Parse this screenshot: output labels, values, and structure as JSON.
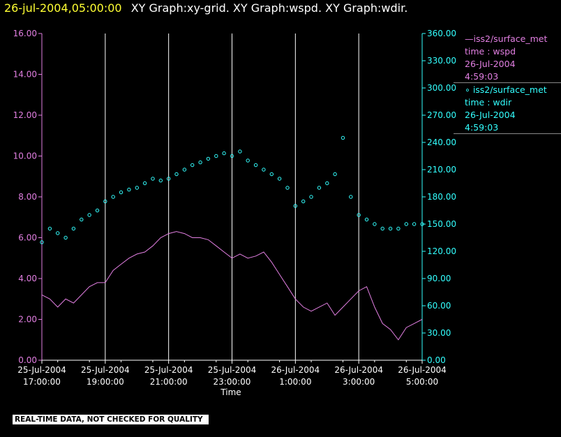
{
  "header": {
    "timestamp": "26-jul-2004,05:00:00",
    "graphs": "XY Graph:xy-grid.  XY Graph:wspd.  XY Graph:wdir."
  },
  "chart_data": {
    "type": "line",
    "xlabel": "Time",
    "x_range": [
      "2004-07-25T17:00",
      "2004-07-26T05:00"
    ],
    "x_ticks": [
      {
        "date": "25-Jul-2004",
        "time": "17:00:00"
      },
      {
        "date": "25-Jul-2004",
        "time": "19:00:00"
      },
      {
        "date": "25-Jul-2004",
        "time": "21:00:00"
      },
      {
        "date": "25-Jul-2004",
        "time": "23:00:00"
      },
      {
        "date": "26-Jul-2004",
        "time": "1:00:00"
      },
      {
        "date": "26-Jul-2004",
        "time": "3:00:00"
      },
      {
        "date": "26-Jul-2004",
        "time": "5:00:00"
      }
    ],
    "vertical_grid": true,
    "y_left": {
      "ylim": [
        0,
        16
      ],
      "ticks": [
        "0.00",
        "2.00",
        "4.00",
        "6.00",
        "8.00",
        "10.00",
        "12.00",
        "14.00",
        "16.00"
      ],
      "color": "#e27fe2"
    },
    "y_right": {
      "ylim": [
        0,
        360
      ],
      "ticks": [
        "0.00",
        "30.00",
        "60.00",
        "90.00",
        "120.00",
        "150.00",
        "180.00",
        "210.00",
        "240.00",
        "270.00",
        "300.00",
        "330.00",
        "360.00"
      ],
      "color": "#33ffff"
    },
    "series": [
      {
        "name": "iss2/surface_met",
        "variable": "wspd",
        "style": "line",
        "axis": "left",
        "color": "#e27fe2",
        "points": [
          [
            "2004-07-25T17:00",
            3.2
          ],
          [
            "2004-07-25T17:15",
            3.0
          ],
          [
            "2004-07-25T17:30",
            2.6
          ],
          [
            "2004-07-25T17:45",
            3.0
          ],
          [
            "2004-07-25T18:00",
            2.8
          ],
          [
            "2004-07-25T18:15",
            3.2
          ],
          [
            "2004-07-25T18:30",
            3.6
          ],
          [
            "2004-07-25T18:45",
            3.8
          ],
          [
            "2004-07-25T19:00",
            3.8
          ],
          [
            "2004-07-25T19:15",
            4.4
          ],
          [
            "2004-07-25T19:30",
            4.7
          ],
          [
            "2004-07-25T19:45",
            5.0
          ],
          [
            "2004-07-25T20:00",
            5.2
          ],
          [
            "2004-07-25T20:15",
            5.3
          ],
          [
            "2004-07-25T20:30",
            5.6
          ],
          [
            "2004-07-25T20:45",
            6.0
          ],
          [
            "2004-07-25T21:00",
            6.2
          ],
          [
            "2004-07-25T21:15",
            6.3
          ],
          [
            "2004-07-25T21:30",
            6.2
          ],
          [
            "2004-07-25T21:45",
            6.0
          ],
          [
            "2004-07-25T22:00",
            6.0
          ],
          [
            "2004-07-25T22:15",
            5.9
          ],
          [
            "2004-07-25T22:30",
            5.6
          ],
          [
            "2004-07-25T22:45",
            5.3
          ],
          [
            "2004-07-25T23:00",
            5.0
          ],
          [
            "2004-07-25T23:15",
            5.2
          ],
          [
            "2004-07-25T23:30",
            5.0
          ],
          [
            "2004-07-25T23:45",
            5.1
          ],
          [
            "2004-07-26T00:00",
            5.3
          ],
          [
            "2004-07-26T00:15",
            4.8
          ],
          [
            "2004-07-26T00:30",
            4.2
          ],
          [
            "2004-07-26T00:45",
            3.6
          ],
          [
            "2004-07-26T01:00",
            3.0
          ],
          [
            "2004-07-26T01:15",
            2.6
          ],
          [
            "2004-07-26T01:30",
            2.4
          ],
          [
            "2004-07-26T01:45",
            2.6
          ],
          [
            "2004-07-26T02:00",
            2.8
          ],
          [
            "2004-07-26T02:15",
            2.2
          ],
          [
            "2004-07-26T02:30",
            2.6
          ],
          [
            "2004-07-26T02:45",
            3.0
          ],
          [
            "2004-07-26T03:00",
            3.4
          ],
          [
            "2004-07-26T03:15",
            3.6
          ],
          [
            "2004-07-26T03:30",
            2.6
          ],
          [
            "2004-07-26T03:45",
            1.8
          ],
          [
            "2004-07-26T04:00",
            1.5
          ],
          [
            "2004-07-26T04:15",
            1.0
          ],
          [
            "2004-07-26T04:30",
            1.6
          ],
          [
            "2004-07-26T04:45",
            1.8
          ],
          [
            "2004-07-26T05:00",
            2.0
          ]
        ],
        "legend_lines": [
          "iss2/surface_met",
          "time : wspd",
          "26-Jul-2004",
          "4:59:03"
        ]
      },
      {
        "name": "iss2/surface_met",
        "variable": "wdir",
        "style": "scatter",
        "axis": "right",
        "color": "#33ffff",
        "points": [
          [
            "2004-07-25T17:00",
            130
          ],
          [
            "2004-07-25T17:15",
            145
          ],
          [
            "2004-07-25T17:30",
            140
          ],
          [
            "2004-07-25T17:45",
            135
          ],
          [
            "2004-07-25T18:00",
            145
          ],
          [
            "2004-07-25T18:15",
            155
          ],
          [
            "2004-07-25T18:30",
            160
          ],
          [
            "2004-07-25T18:45",
            165
          ],
          [
            "2004-07-25T19:00",
            175
          ],
          [
            "2004-07-25T19:15",
            180
          ],
          [
            "2004-07-25T19:30",
            185
          ],
          [
            "2004-07-25T19:45",
            188
          ],
          [
            "2004-07-25T20:00",
            190
          ],
          [
            "2004-07-25T20:15",
            195
          ],
          [
            "2004-07-25T20:30",
            200
          ],
          [
            "2004-07-25T20:45",
            198
          ],
          [
            "2004-07-25T21:00",
            200
          ],
          [
            "2004-07-25T21:15",
            205
          ],
          [
            "2004-07-25T21:30",
            210
          ],
          [
            "2004-07-25T21:45",
            215
          ],
          [
            "2004-07-25T22:00",
            218
          ],
          [
            "2004-07-25T22:15",
            222
          ],
          [
            "2004-07-25T22:30",
            225
          ],
          [
            "2004-07-25T22:45",
            228
          ],
          [
            "2004-07-25T23:00",
            225
          ],
          [
            "2004-07-25T23:15",
            230
          ],
          [
            "2004-07-25T23:30",
            220
          ],
          [
            "2004-07-25T23:45",
            215
          ],
          [
            "2004-07-26T00:00",
            210
          ],
          [
            "2004-07-26T00:15",
            205
          ],
          [
            "2004-07-26T00:30",
            200
          ],
          [
            "2004-07-26T00:45",
            190
          ],
          [
            "2004-07-26T01:00",
            170
          ],
          [
            "2004-07-26T01:15",
            175
          ],
          [
            "2004-07-26T01:30",
            180
          ],
          [
            "2004-07-26T01:45",
            190
          ],
          [
            "2004-07-26T02:00",
            195
          ],
          [
            "2004-07-26T02:15",
            205
          ],
          [
            "2004-07-26T02:30",
            245
          ],
          [
            "2004-07-26T02:45",
            180
          ],
          [
            "2004-07-26T03:00",
            160
          ],
          [
            "2004-07-26T03:15",
            155
          ],
          [
            "2004-07-26T03:30",
            150
          ],
          [
            "2004-07-26T03:45",
            145
          ],
          [
            "2004-07-26T04:00",
            145
          ],
          [
            "2004-07-26T04:15",
            145
          ],
          [
            "2004-07-26T04:30",
            150
          ],
          [
            "2004-07-26T04:45",
            150
          ],
          [
            "2004-07-26T05:00",
            150
          ]
        ],
        "legend_lines": [
          "iss2/surface_met",
          "time : wdir",
          "26-Jul-2004",
          "4:59:03"
        ]
      }
    ]
  },
  "disclaimer": "REAL-TIME DATA, NOT CHECKED FOR QUALITY"
}
